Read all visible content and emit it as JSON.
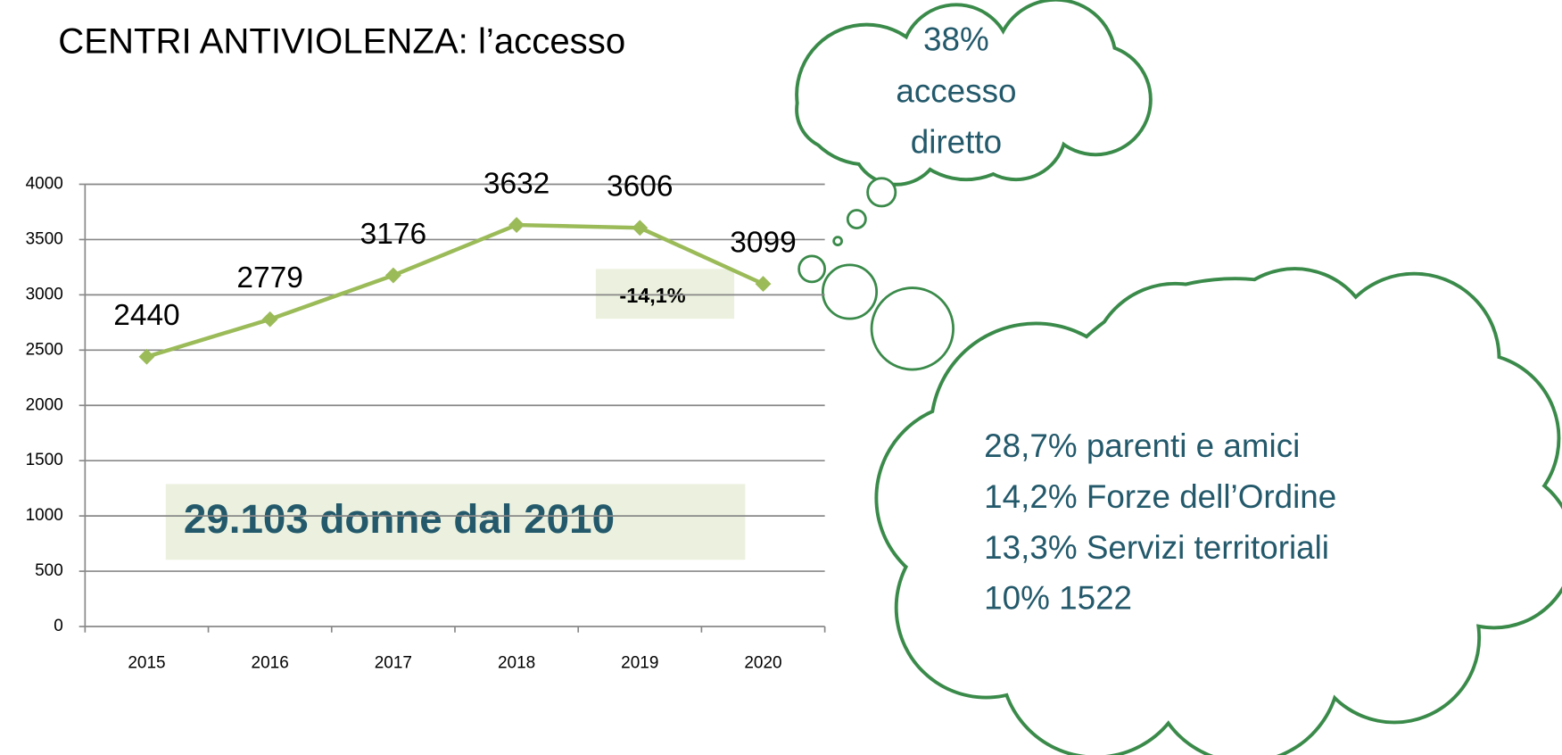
{
  "chart_data": {
    "type": "line",
    "title": "CENTRI ANTIVIOLENZA: l’accesso",
    "categories": [
      "2015",
      "2016",
      "2017",
      "2018",
      "2019",
      "2020"
    ],
    "values": [
      2440,
      2779,
      3176,
      3632,
      3606,
      3099
    ],
    "color": "#9bbb59",
    "ylim": [
      0,
      4000
    ],
    "yticks": [
      0,
      500,
      1000,
      1500,
      2000,
      2500,
      3000,
      3500,
      4000
    ],
    "grid": true,
    "annotations": [
      "-14,1%",
      "29.103 donne dal 2010"
    ]
  },
  "callouts": [
    {
      "lines": [
        "38%",
        "accesso",
        "diretto"
      ]
    },
    {
      "lines": [
        "28,7% parenti e amici",
        "14,2% Forze  dell’Ordine",
        "13,3% Servizi territoriali",
        "10% 1522"
      ]
    }
  ]
}
